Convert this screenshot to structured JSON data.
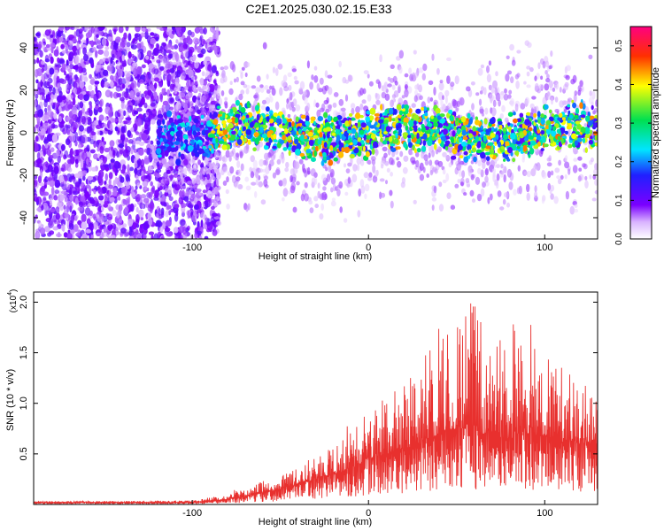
{
  "title": "C2E1.2025.030.02.15.E33",
  "colors": {
    "snr_line": "#e8302e",
    "spectro_low": "#7a00ff",
    "frame": "#000000"
  },
  "chart_data": [
    {
      "type": "heatmap",
      "xlabel": "Height of straight line (km)",
      "ylabel": "Frequency (Hz)",
      "xlim": [
        -190,
        130
      ],
      "ylim": [
        -50,
        50
      ],
      "x_ticks": [
        -100,
        0,
        100
      ],
      "y_ticks": [
        -40,
        -20,
        0,
        20,
        40
      ],
      "x_tick_labels": [
        "-100",
        "0",
        "100"
      ],
      "y_tick_labels": [
        "-40",
        "-20",
        "0",
        "20",
        "40"
      ],
      "description_of_data": "Broadband noise everywhere for heights below about -85 km; narrow band near 0 Hz (about -10 to +10 Hz) from -120 km upward with peak amplitudes 0.3-0.5",
      "band": {
        "x_start": -120,
        "center_hz": 0,
        "halfwidth_hz": 10
      },
      "noise_region": {
        "x_end": -85
      },
      "colorbar": {
        "label": "Normalized spectral amplitude",
        "range": [
          0.0,
          0.55
        ],
        "ticks": [
          0.0,
          0.1,
          0.2,
          0.3,
          0.4,
          0.5
        ],
        "tick_labels": [
          "0.0",
          "0.1",
          "0.2",
          "0.3",
          "0.4",
          "0.5"
        ]
      },
      "grid": false
    },
    {
      "type": "line",
      "xlabel": "Height of straight line (km)",
      "ylabel": "SNR (10 * v/v)",
      "y_multiplier_label": "(x10",
      "y_multiplier_exp": "4",
      "xlim": [
        -190,
        130
      ],
      "ylim": [
        0,
        2.1
      ],
      "x_ticks": [
        -100,
        0,
        100
      ],
      "y_ticks": [
        0.5,
        1.0,
        1.5,
        2.0
      ],
      "x_tick_labels": [
        "-100",
        "0",
        "100"
      ],
      "y_tick_labels": [
        "0.5",
        "1.0",
        "1.5",
        "2.0"
      ],
      "series": [
        {
          "envelope_x": [
            -190,
            -100,
            -85,
            -70,
            -50,
            -30,
            -10,
            0,
            10,
            20,
            30,
            40,
            50,
            60,
            70,
            80,
            90,
            100,
            110,
            120,
            130
          ],
          "envelope_peak": [
            0.03,
            0.04,
            0.09,
            0.18,
            0.28,
            0.48,
            0.82,
            0.95,
            1.05,
            1.2,
            1.4,
            1.75,
            1.95,
            2.0,
            1.8,
            1.75,
            1.9,
            1.55,
            1.35,
            1.25,
            1.2
          ],
          "envelope_typ": [
            0.02,
            0.02,
            0.04,
            0.08,
            0.15,
            0.25,
            0.35,
            0.45,
            0.5,
            0.55,
            0.6,
            0.7,
            0.75,
            0.72,
            0.68,
            0.65,
            0.7,
            0.68,
            0.62,
            0.6,
            0.6
          ]
        }
      ],
      "grid": false
    }
  ]
}
